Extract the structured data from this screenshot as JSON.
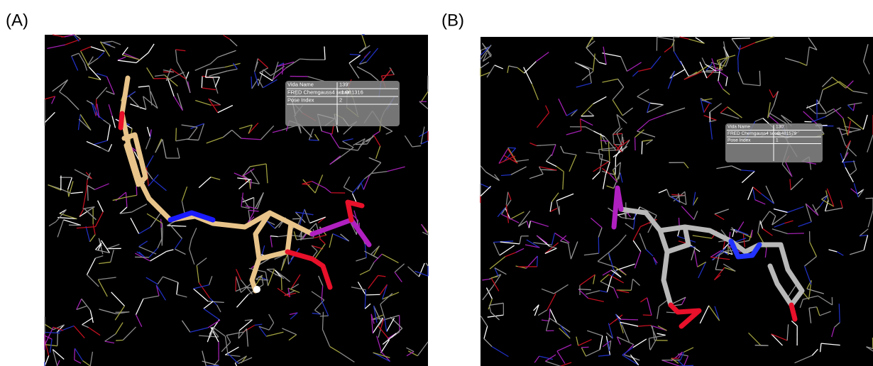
{
  "panels": [
    {
      "label": "(A)",
      "table": {
        "rows": [
          [
            "Vida Name",
            "139'"
          ],
          [
            "FRED Chemgauss4 score",
            "-1.081316"
          ],
          [
            "Pose Index",
            "2"
          ]
        ]
      }
    },
    {
      "label": "(B)",
      "table": {
        "rows": [
          [
            "Vida Name",
            "130'"
          ],
          [
            "FRED Chemgauss4 score",
            "-2.481579"
          ],
          [
            "Pose Index",
            "1"
          ]
        ]
      }
    }
  ]
}
